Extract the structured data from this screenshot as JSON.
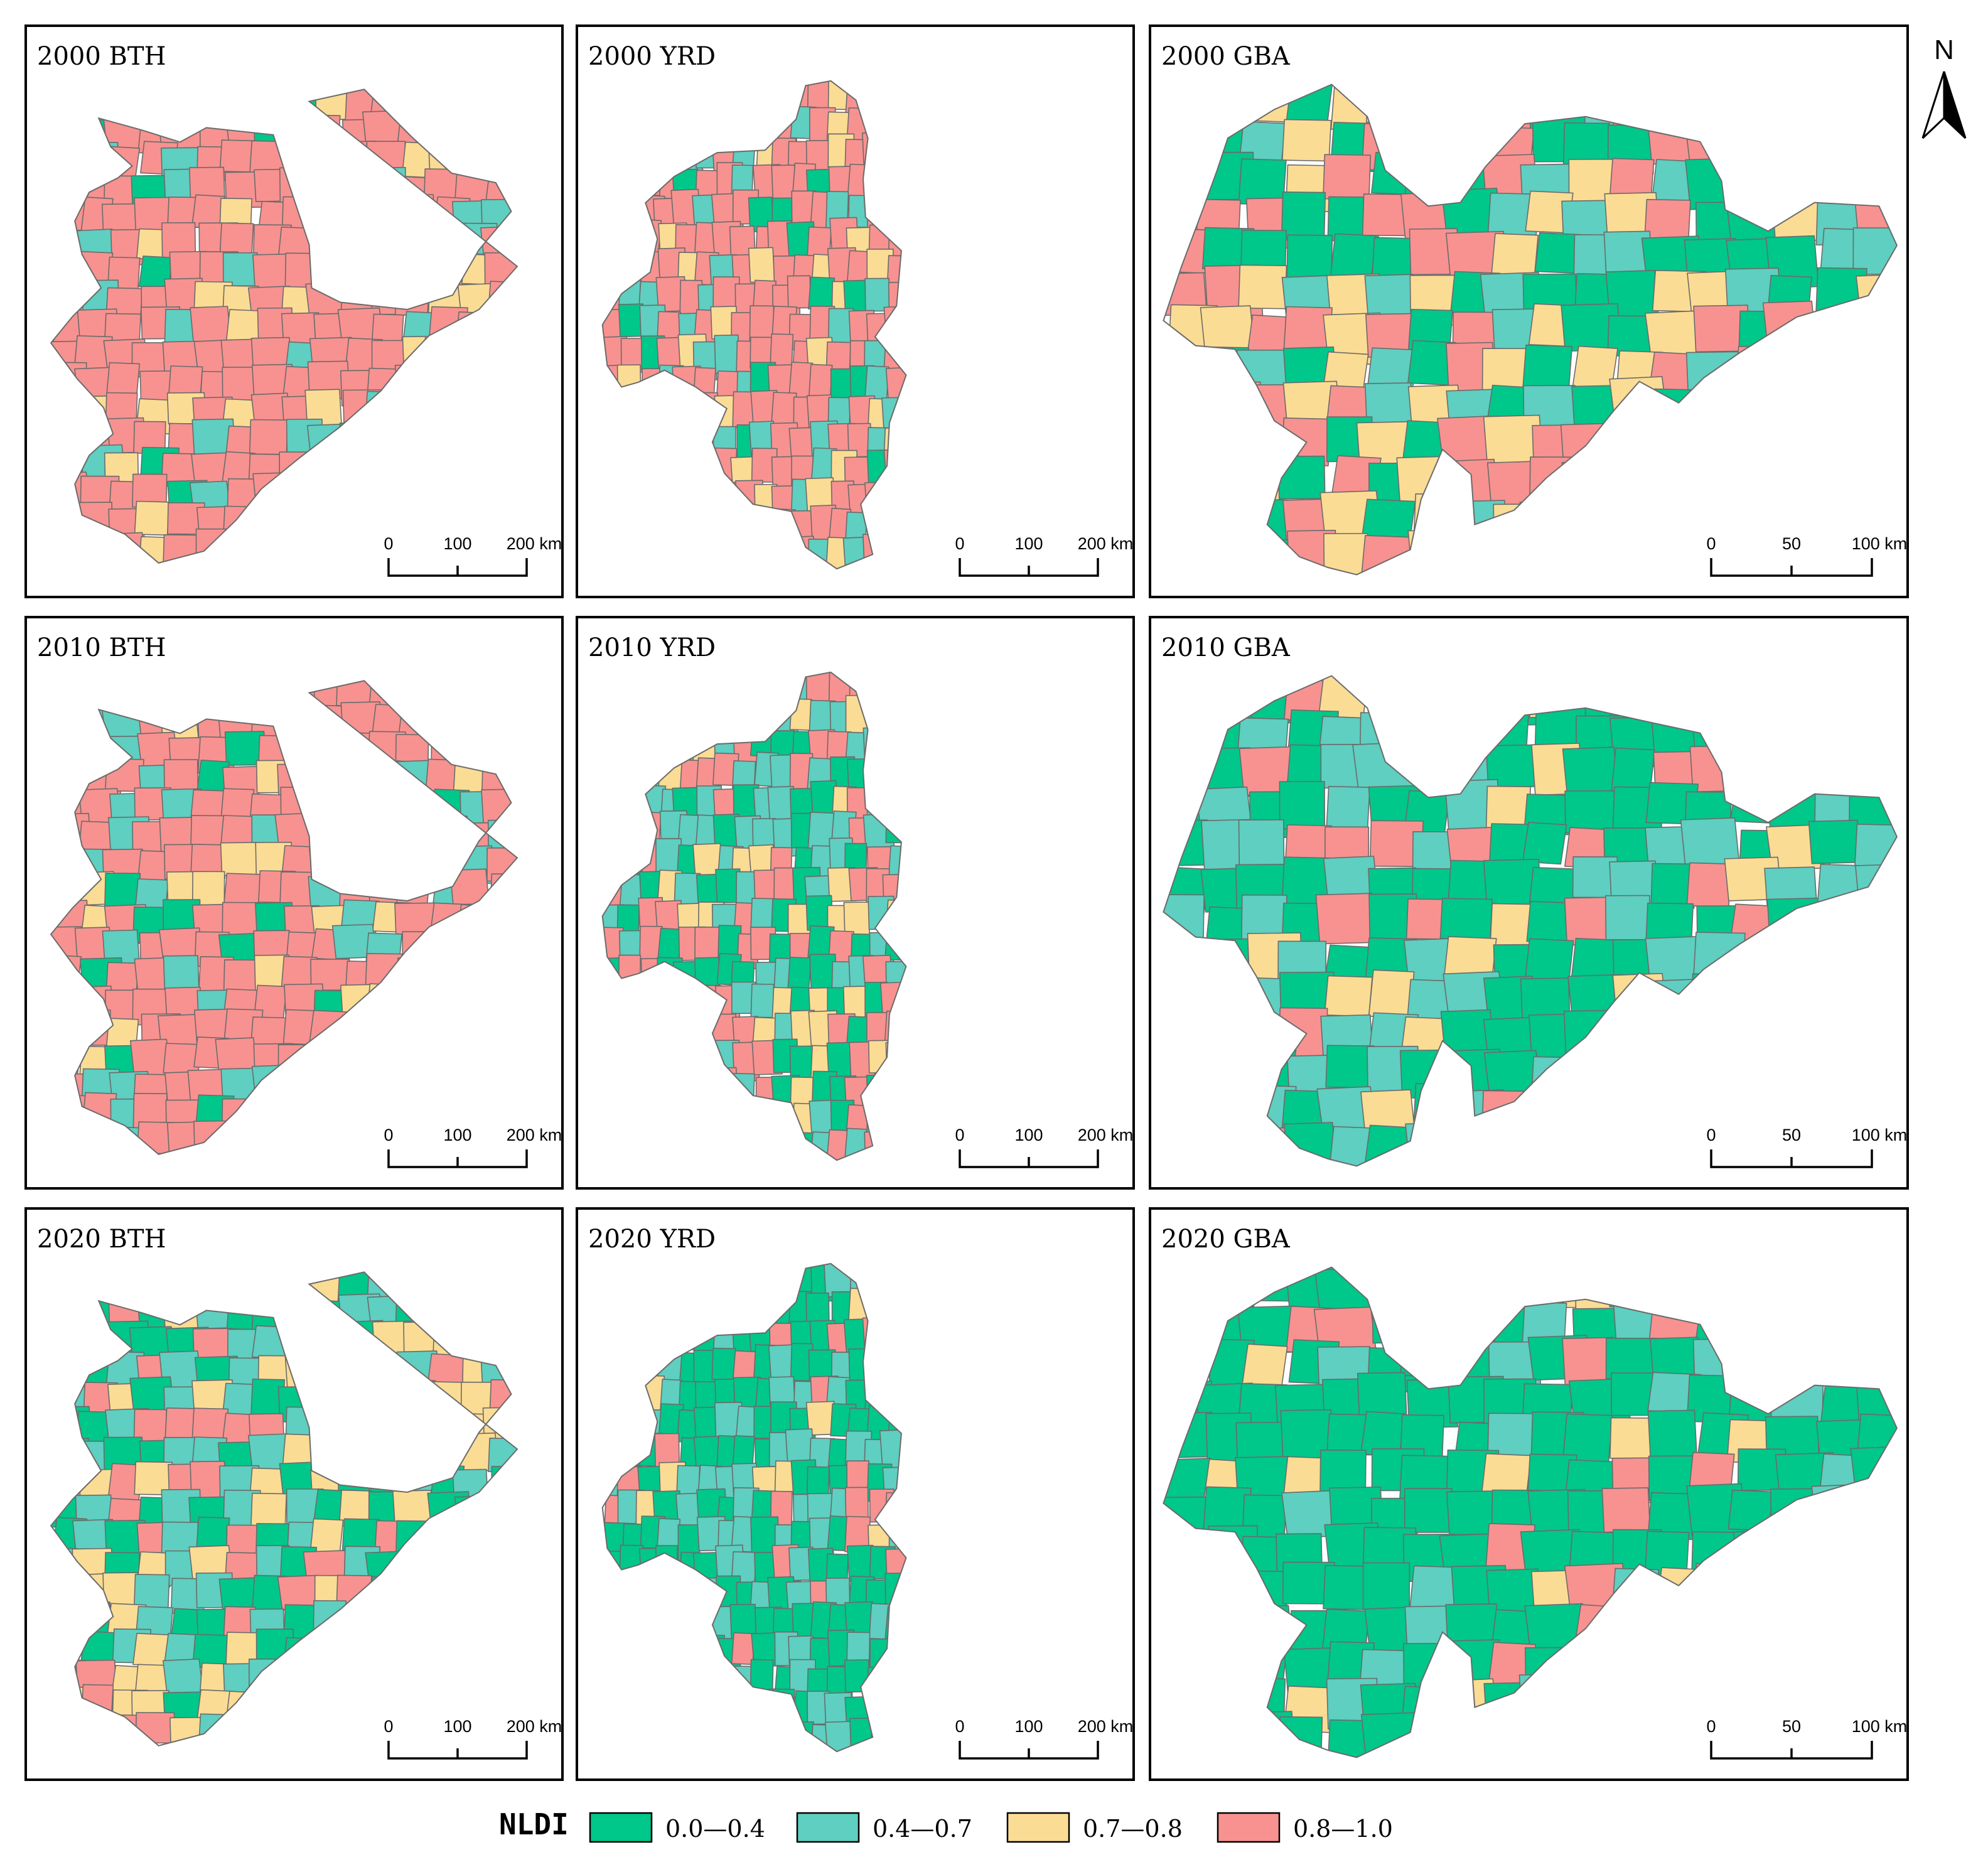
{
  "colors": {
    "c1": "#00c78a",
    "c2": "#5ecfc0",
    "c3": "#fbdc94",
    "c4": "#f79290"
  },
  "north_arrow": {
    "label": "N"
  },
  "legend": {
    "title": "NLDI",
    "items": [
      {
        "key": "c1",
        "label": "0.0—0.4"
      },
      {
        "key": "c2",
        "label": "0.4—0.7"
      },
      {
        "key": "c3",
        "label": "0.7—0.8"
      },
      {
        "key": "c4",
        "label": "0.8—1.0"
      }
    ]
  },
  "scale_bars": {
    "BTH": [
      "0",
      "100",
      "200 km"
    ],
    "YRD": [
      "0",
      "100",
      "200 km"
    ],
    "GBA": [
      "0",
      "50",
      "100 km"
    ]
  },
  "panels": [
    {
      "title": "2000 BTH",
      "region": "BTH",
      "year": "2000",
      "mix": [
        0.04,
        0.12,
        0.08,
        0.76
      ]
    },
    {
      "title": "2000 YRD",
      "region": "YRD",
      "year": "2000",
      "mix": [
        0.08,
        0.2,
        0.12,
        0.6
      ]
    },
    {
      "title": "2000 GBA",
      "region": "GBA",
      "year": "2000",
      "mix": [
        0.4,
        0.15,
        0.22,
        0.23
      ]
    },
    {
      "title": "2010 BTH",
      "region": "BTH",
      "year": "2010",
      "mix": [
        0.1,
        0.2,
        0.1,
        0.6
      ]
    },
    {
      "title": "2010 YRD",
      "region": "YRD",
      "year": "2010",
      "mix": [
        0.28,
        0.3,
        0.14,
        0.28
      ]
    },
    {
      "title": "2010 GBA",
      "region": "GBA",
      "year": "2010",
      "mix": [
        0.55,
        0.25,
        0.08,
        0.12
      ]
    },
    {
      "title": "2020 BTH",
      "region": "BTH",
      "year": "2020",
      "mix": [
        0.3,
        0.3,
        0.25,
        0.15
      ]
    },
    {
      "title": "2020 YRD",
      "region": "YRD",
      "year": "2020",
      "mix": [
        0.58,
        0.26,
        0.08,
        0.08
      ]
    },
    {
      "title": "2020 GBA",
      "region": "GBA",
      "year": "2020",
      "mix": [
        0.78,
        0.1,
        0.06,
        0.06
      ]
    }
  ]
}
